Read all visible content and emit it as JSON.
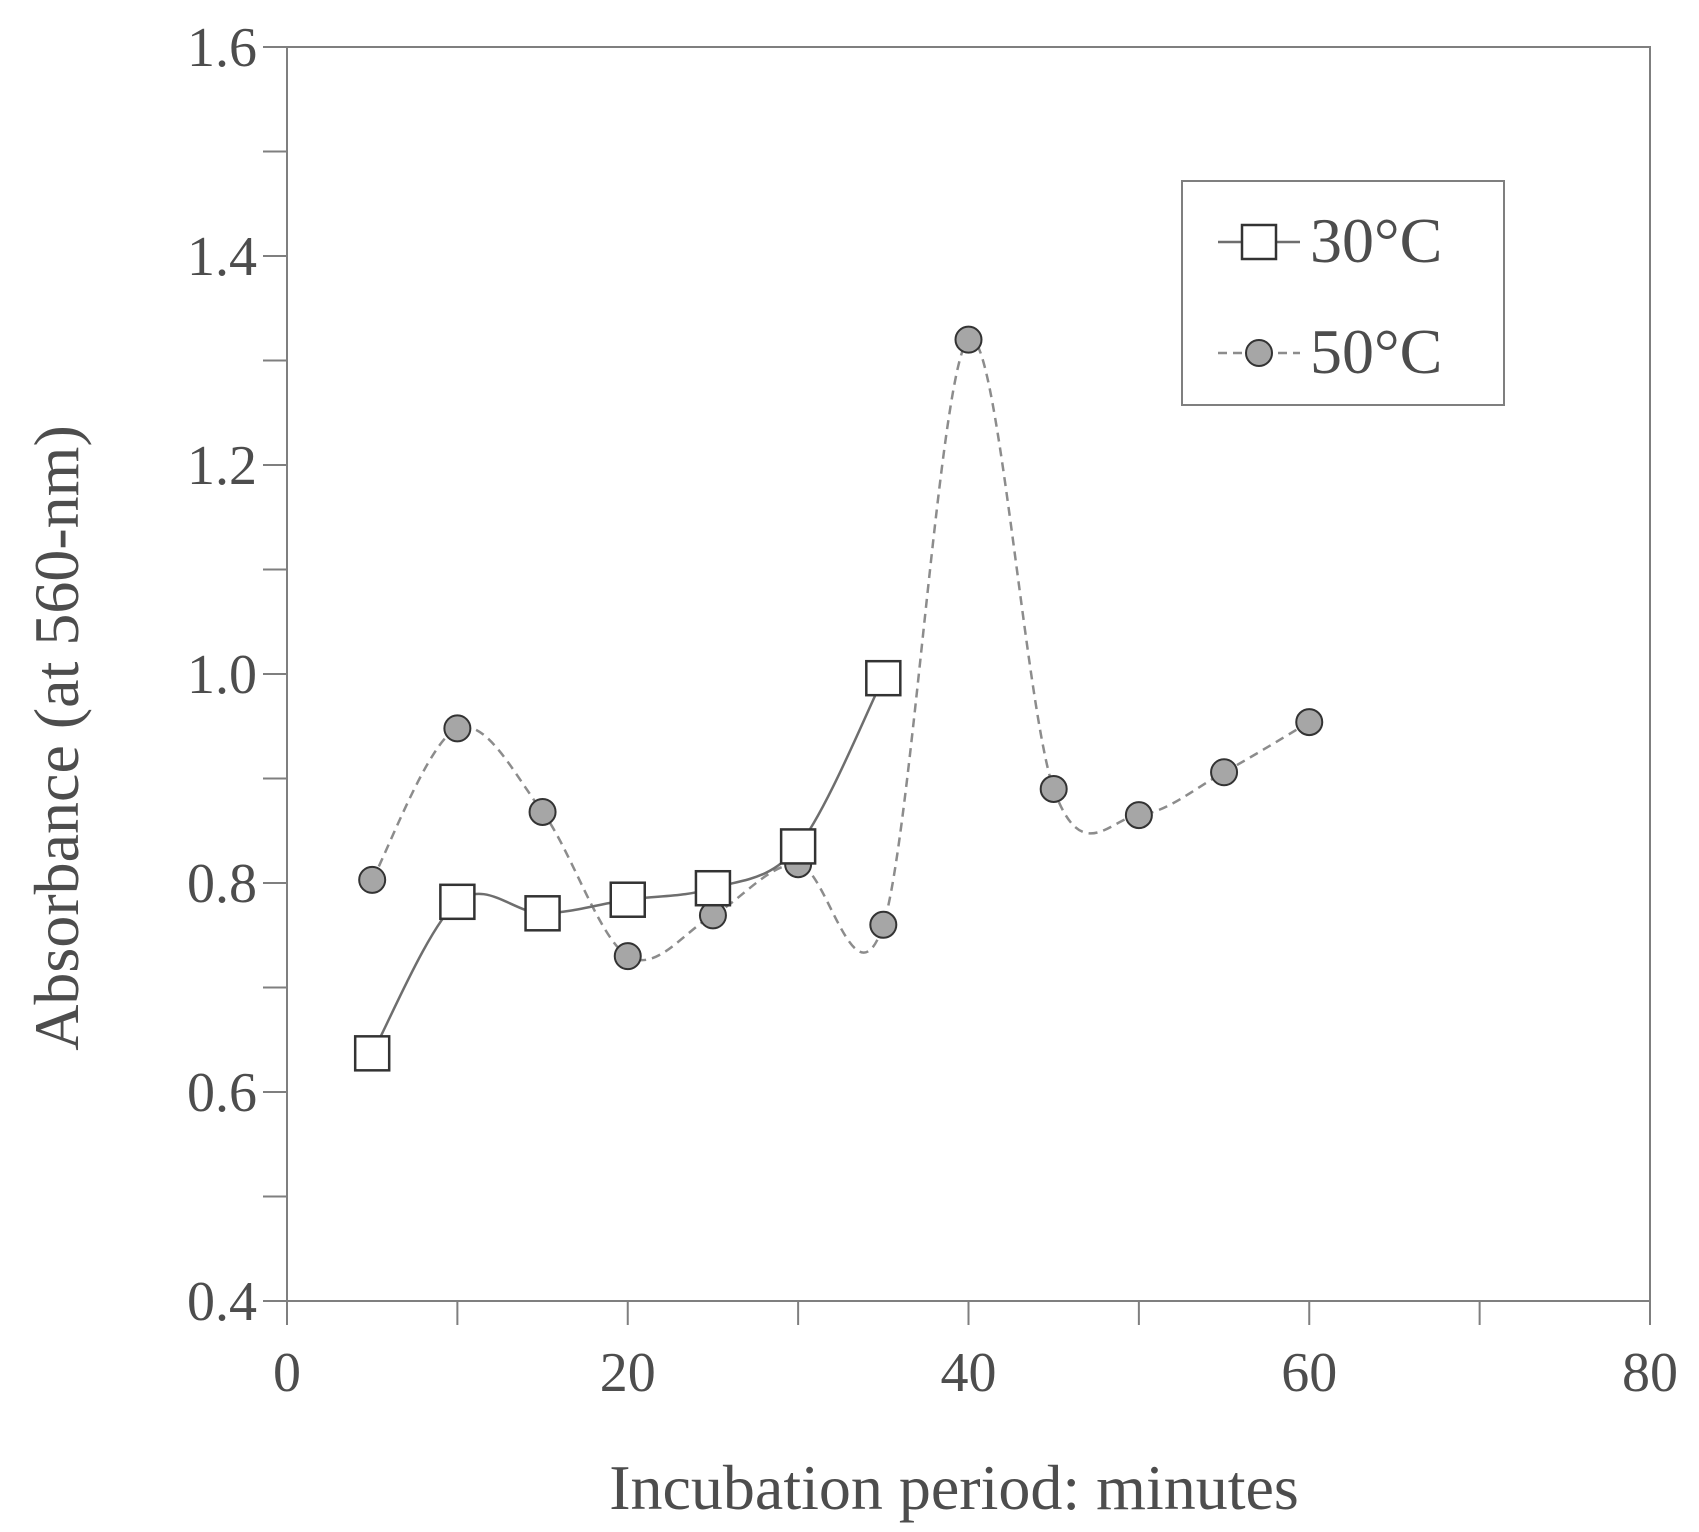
{
  "chart_data": {
    "type": "line",
    "title": "",
    "xlabel": "Incubation period: minutes",
    "ylabel": "Absorbance (at 560-nm)",
    "xlim": [
      0,
      80
    ],
    "ylim": [
      0.4,
      1.6
    ],
    "x_ticks": [
      0,
      20,
      40,
      60,
      80
    ],
    "x_tick_labels": [
      "0",
      "20",
      "40",
      "60",
      "80"
    ],
    "x_minor_step": 10,
    "y_ticks": [
      0.4,
      0.6,
      0.8,
      1.0,
      1.2,
      1.4,
      1.6
    ],
    "y_tick_labels": [
      "0.4",
      "0.6",
      "0.8",
      "1.0",
      "1.2",
      "1.4",
      "1.6"
    ],
    "y_minor_step": 0.1,
    "grid": false,
    "legend_position": "top-right",
    "series": [
      {
        "name": "30°C",
        "marker": "square",
        "line_style": "solid",
        "color": "#6e6e6e",
        "marker_fill": "#ffffff",
        "x": [
          5,
          10,
          15,
          20,
          25,
          30,
          35
        ],
        "y": [
          0.637,
          0.782,
          0.771,
          0.784,
          0.795,
          0.835,
          0.996
        ]
      },
      {
        "name": "50°C",
        "marker": "circle",
        "line_style": "dashed",
        "color": "#8c8c8c",
        "marker_fill": "#a6a6a6",
        "x": [
          5,
          10,
          15,
          20,
          25,
          30,
          35,
          40,
          45,
          50,
          55,
          60
        ],
        "y": [
          0.803,
          0.948,
          0.868,
          0.73,
          0.769,
          0.818,
          0.76,
          1.32,
          0.89,
          0.865,
          0.906,
          0.954
        ]
      }
    ]
  },
  "colors": {
    "axis": "#7f7f7f",
    "text": "#4d4d4d",
    "marker_stroke": "#333333"
  }
}
